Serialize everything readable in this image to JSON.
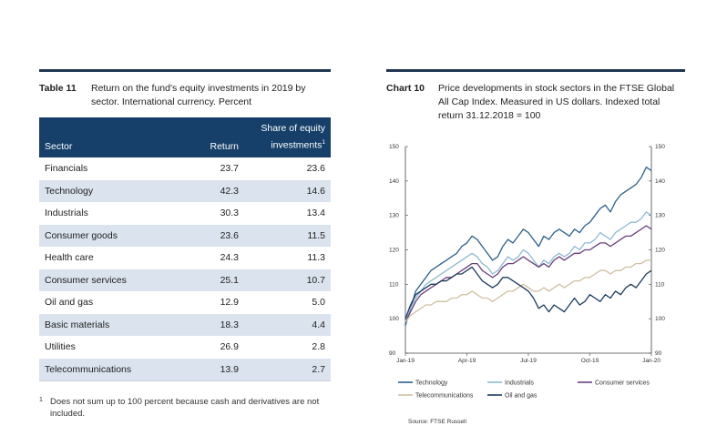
{
  "table": {
    "number": "Table 11",
    "caption": "Return on the fund's equity investments in 2019 by sector. International currency. Percent",
    "headers": {
      "sector": "Sector",
      "return": "Return",
      "share": "Share of equity investments",
      "share_sup": "1"
    },
    "rows": [
      {
        "sector": "Financials",
        "return": "23.7",
        "share": "23.6"
      },
      {
        "sector": "Technology",
        "return": "42.3",
        "share": "14.6"
      },
      {
        "sector": "Industrials",
        "return": "30.3",
        "share": "13.4"
      },
      {
        "sector": "Consumer goods",
        "return": "23.6",
        "share": "11.5"
      },
      {
        "sector": "Health care",
        "return": "24.3",
        "share": "11.3"
      },
      {
        "sector": "Consumer services",
        "return": "25.1",
        "share": "10.7"
      },
      {
        "sector": "Oil and gas",
        "return": "12.9",
        "share": "5.0"
      },
      {
        "sector": "Basic materials",
        "return": "18.3",
        "share": "4.4"
      },
      {
        "sector": "Utilities",
        "return": "26.9",
        "share": "2.8"
      },
      {
        "sector": "Telecommunications",
        "return": "13.9",
        "share": "2.7"
      }
    ],
    "footnote_mark": "1",
    "footnote": "Does not sum up to 100 percent because cash and derivatives are not included."
  },
  "chart": {
    "number": "Chart 10",
    "caption": "Price developments in stock sectors in the FTSE Global All Cap Index. Measured in US dollars. Indexed total return 31.12.2018 = 100",
    "source": "Source: FTSE Russell"
  },
  "chart_data": {
    "type": "line",
    "title": "Price developments in stock sectors in the FTSE Global All Cap Index. Measured in US dollars. Indexed total return 31.12.2018 = 100",
    "xlabel": "",
    "ylabel": "",
    "ylim": [
      90,
      150
    ],
    "yticks": [
      "90",
      "100",
      "110",
      "120",
      "130",
      "140",
      "150"
    ],
    "xticks": [
      "Jan-19",
      "Apr-19",
      "Jul-19",
      "Oct-19",
      "Jan-20"
    ],
    "x": [
      0,
      0.25,
      0.5,
      0.75,
      1,
      1.25,
      1.5,
      1.75,
      2,
      2.25,
      2.5,
      2.75,
      3,
      3.25,
      3.5,
      3.75,
      4,
      4.25,
      4.5,
      4.75,
      5,
      5.25,
      5.5,
      5.75,
      6,
      6.25,
      6.5,
      6.75,
      7,
      7.25,
      7.5,
      7.75,
      8,
      8.25,
      8.5,
      8.75,
      9,
      9.25,
      9.5,
      9.75,
      10,
      10.25,
      10.5,
      10.75,
      11,
      11.25,
      11.5,
      11.75,
      12
    ],
    "series": [
      {
        "name": "Technology",
        "color": "#2b5f8e",
        "values": [
          98,
          103,
          108,
          110,
          112,
          114,
          115,
          116,
          117,
          118,
          119,
          121,
          122,
          124,
          123,
          121,
          119,
          117,
          118,
          121,
          123,
          122,
          124,
          126,
          125,
          123,
          121,
          124,
          123,
          125,
          126,
          125,
          124,
          126,
          125,
          127,
          128,
          130,
          132,
          133,
          131,
          134,
          136,
          137,
          138,
          139,
          141,
          144,
          143
        ]
      },
      {
        "name": "Industrials",
        "color": "#8dbad3",
        "values": [
          99,
          103,
          106,
          108,
          110,
          111,
          112,
          113,
          114,
          115,
          116,
          117,
          118,
          119,
          118,
          116,
          115,
          113,
          114,
          116,
          118,
          117,
          118,
          120,
          119,
          117,
          115,
          117,
          116,
          118,
          119,
          118,
          119,
          121,
          120,
          122,
          122,
          123,
          125,
          124,
          123,
          125,
          126,
          127,
          128,
          128,
          129,
          131,
          130
        ]
      },
      {
        "name": "Consumer services",
        "color": "#6b3f7c",
        "values": [
          99,
          102,
          105,
          107,
          108,
          109,
          110,
          111,
          112,
          112,
          113,
          114,
          115,
          116,
          116,
          114,
          113,
          112,
          113,
          115,
          116,
          116,
          117,
          118,
          117,
          116,
          115,
          116,
          115,
          117,
          118,
          117,
          118,
          119,
          119,
          120,
          120,
          121,
          122,
          122,
          121,
          122,
          123,
          124,
          124,
          125,
          126,
          127,
          126
        ]
      },
      {
        "name": "Telecommunications",
        "color": "#cfc1a0",
        "values": [
          99,
          101,
          102,
          103,
          104,
          104,
          105,
          105,
          105,
          106,
          106,
          107,
          107,
          108,
          107,
          106,
          106,
          105,
          106,
          107,
          108,
          108,
          109,
          110,
          109,
          108,
          108,
          109,
          108,
          109,
          110,
          109,
          110,
          111,
          111,
          112,
          112,
          113,
          114,
          114,
          113,
          114,
          114,
          115,
          115,
          116,
          116,
          117,
          117
        ]
      },
      {
        "name": "Oil and gas",
        "color": "#1b3a5e",
        "values": [
          100,
          104,
          107,
          108,
          109,
          110,
          110,
          111,
          111,
          112,
          113,
          113,
          114,
          115,
          113,
          111,
          110,
          109,
          110,
          112,
          112,
          111,
          110,
          109,
          108,
          106,
          103,
          104,
          102,
          104,
          103,
          102,
          104,
          106,
          104,
          105,
          107,
          106,
          105,
          107,
          106,
          108,
          107,
          109,
          110,
          109,
          111,
          113,
          114
        ]
      }
    ],
    "legend_position": "bottom"
  }
}
